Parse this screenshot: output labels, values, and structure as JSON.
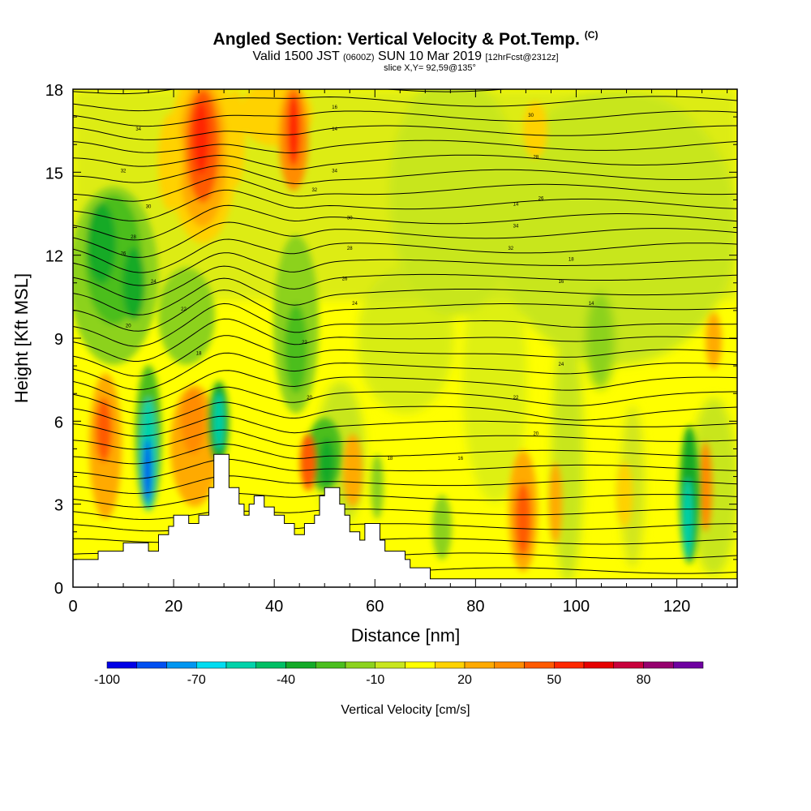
{
  "chart_data": {
    "type": "heatmap",
    "title": "Angled Section: Vertical Velocity & Pot.Temp.",
    "title_units": "(C)",
    "subtitle_parts": {
      "valid": "Valid 1500 JST",
      "utc": "(0600Z)",
      "date": "SUN 10 Mar 2019",
      "forecast": "[12hrFcst@2312z]"
    },
    "slice": "slice X,Y= 92,59@135°",
    "xlabel": "Distance [nm]",
    "ylabel": "Height [Kft MSL]",
    "xlim": [
      0,
      132
    ],
    "ylim": [
      0,
      18
    ],
    "xticks": [
      "0",
      "20",
      "40",
      "60",
      "80",
      "100",
      "120"
    ],
    "yticks": [
      "0",
      "3",
      "6",
      "9",
      "12",
      "15",
      "18"
    ],
    "colorbar": {
      "label": "Vertical Velocity [cm/s]",
      "tick_labels": [
        "-100",
        "-70",
        "-40",
        "-10",
        "20",
        "50",
        "80"
      ],
      "colors": [
        "#0000e6",
        "#0050f0",
        "#0096f0",
        "#00dcf0",
        "#00d2aa",
        "#00be64",
        "#14aa28",
        "#4bbe1e",
        "#8cd21e",
        "#c8e61e",
        "#ffff00",
        "#ffd200",
        "#ffaa00",
        "#ff8c00",
        "#ff5a00",
        "#ff2800",
        "#e60000",
        "#c8003c",
        "#96006e",
        "#6e00a0"
      ]
    },
    "terrain": [
      [
        0,
        1
      ],
      [
        5,
        1
      ],
      [
        5,
        1.3
      ],
      [
        10,
        1.3
      ],
      [
        10,
        1.6
      ],
      [
        15,
        1.6
      ],
      [
        15,
        1.3
      ],
      [
        17,
        1.3
      ],
      [
        17,
        1.9
      ],
      [
        19,
        1.9
      ],
      [
        19,
        2.2
      ],
      [
        20,
        2.2
      ],
      [
        20,
        2.6
      ],
      [
        23,
        2.6
      ],
      [
        23,
        2.3
      ],
      [
        25,
        2.3
      ],
      [
        25,
        2.6
      ],
      [
        27,
        2.6
      ],
      [
        27,
        3.6
      ],
      [
        28,
        3.6
      ],
      [
        28,
        4.8
      ],
      [
        31,
        4.8
      ],
      [
        31,
        3.6
      ],
      [
        33,
        3.6
      ],
      [
        33,
        3.0
      ],
      [
        34,
        3.0
      ],
      [
        34,
        2.6
      ],
      [
        35,
        2.6
      ],
      [
        35,
        3.0
      ],
      [
        36,
        3.0
      ],
      [
        36,
        3.3
      ],
      [
        38,
        3.3
      ],
      [
        38,
        2.9
      ],
      [
        40,
        2.9
      ],
      [
        40,
        2.6
      ],
      [
        42,
        2.6
      ],
      [
        42,
        2.3
      ],
      [
        44,
        2.3
      ],
      [
        44,
        1.9
      ],
      [
        46,
        1.9
      ],
      [
        46,
        2.3
      ],
      [
        48,
        2.3
      ],
      [
        48,
        2.6
      ],
      [
        49,
        2.6
      ],
      [
        49,
        3.3
      ],
      [
        50,
        3.3
      ],
      [
        50,
        3.6
      ],
      [
        53,
        3.6
      ],
      [
        53,
        3.0
      ],
      [
        54,
        3.0
      ],
      [
        54,
        2.6
      ],
      [
        55,
        2.6
      ],
      [
        55,
        2.0
      ],
      [
        57,
        2.0
      ],
      [
        57,
        1.7
      ],
      [
        58,
        1.7
      ],
      [
        58,
        2.3
      ],
      [
        61,
        2.3
      ],
      [
        61,
        1.7
      ],
      [
        62,
        1.7
      ],
      [
        62,
        1.3
      ],
      [
        66,
        1.3
      ],
      [
        66,
        1.0
      ],
      [
        67,
        1.0
      ],
      [
        67,
        0.7
      ],
      [
        71,
        0.7
      ],
      [
        71,
        0.3
      ],
      [
        132,
        0.3
      ],
      [
        132,
        0
      ],
      [
        0,
        0
      ]
    ],
    "isentrope_labels": [
      "34",
      "32",
      "30",
      "28",
      "26",
      "24",
      "22",
      "20",
      "18",
      "16",
      "14"
    ]
  }
}
